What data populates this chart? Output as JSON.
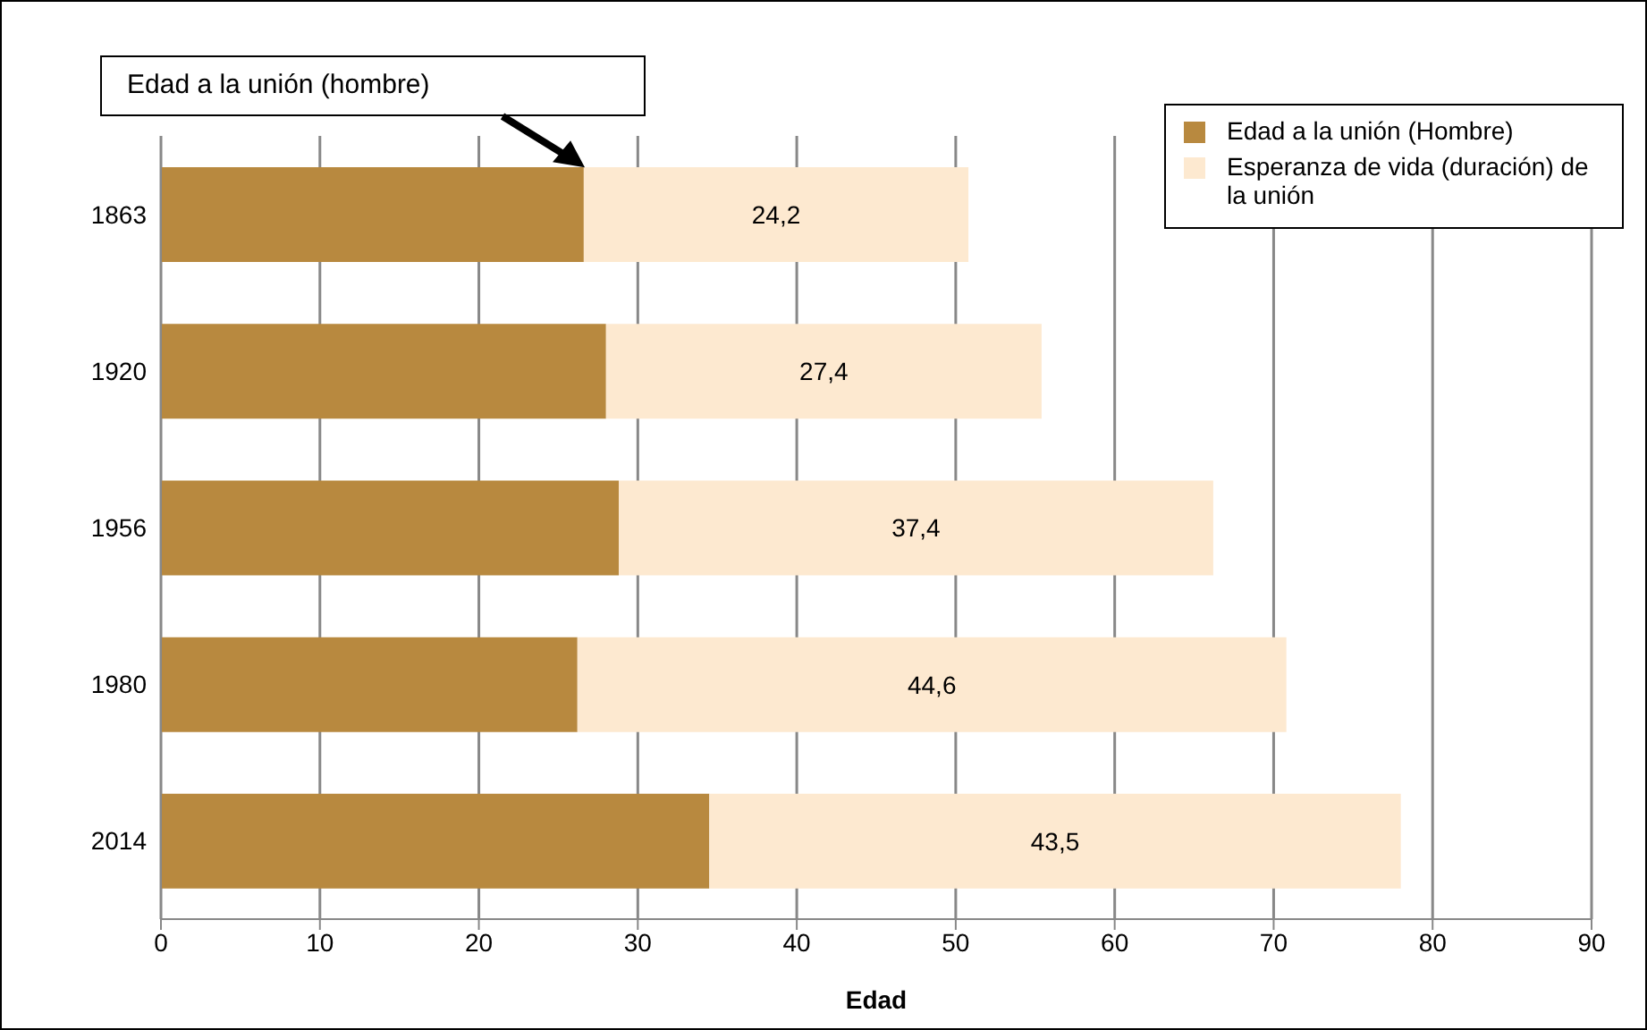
{
  "chart_data": {
    "type": "bar",
    "orientation": "horizontal",
    "stacked": true,
    "xlabel": "Edad",
    "categories": [
      "1863",
      "1920",
      "1956",
      "1980",
      "2014"
    ],
    "series": [
      {
        "name": "Edad a la unión (Hombre)",
        "color": "#b8893f",
        "values": [
          26.6,
          28.0,
          28.8,
          26.2,
          34.5
        ]
      },
      {
        "name": "Esperanza de vida (duración) de la unión",
        "color": "#fde9d0",
        "values": [
          24.2,
          27.4,
          37.4,
          44.6,
          43.5
        ],
        "value_labels": [
          "24,2",
          "27,4",
          "37,4",
          "44,6",
          "43,5"
        ]
      }
    ],
    "xlim": [
      0,
      90
    ],
    "xticks": [
      0,
      10,
      20,
      30,
      40,
      50,
      60,
      70,
      80,
      90
    ],
    "grid": "x",
    "legend": "top right",
    "annotations": [
      "Edad a la unión (hombre)"
    ]
  }
}
